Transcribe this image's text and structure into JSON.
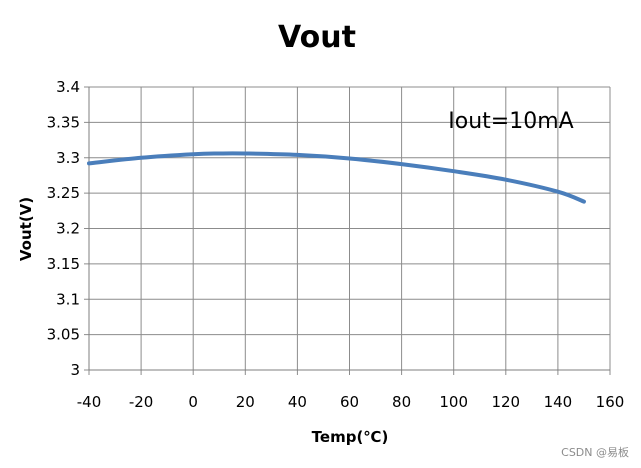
{
  "chart_data": {
    "type": "line",
    "title": "Vout",
    "xlabel": "Temp(℃)",
    "ylabel": "Vout(V)",
    "xlim": [
      -40,
      160
    ],
    "ylim": [
      3.0,
      3.4
    ],
    "x_ticks": [
      "-40",
      "-20",
      "0",
      "20",
      "40",
      "60",
      "80",
      "100",
      "120",
      "140",
      "160"
    ],
    "y_ticks": [
      "3",
      "3.05",
      "3.1",
      "3.15",
      "3.2",
      "3.25",
      "3.3",
      "3.35",
      "3.4"
    ],
    "grid": true,
    "annotation": "Iout=10mA",
    "series": [
      {
        "color": "#4a7ebb",
        "x": [
          -40,
          -20,
          0,
          10,
          20,
          40,
          60,
          80,
          100,
          120,
          140,
          150
        ],
        "y": [
          3.292,
          3.3,
          3.305,
          3.306,
          3.306,
          3.304,
          3.299,
          3.291,
          3.281,
          3.269,
          3.252,
          3.238
        ]
      }
    ]
  },
  "watermark": "CSDN @易板"
}
